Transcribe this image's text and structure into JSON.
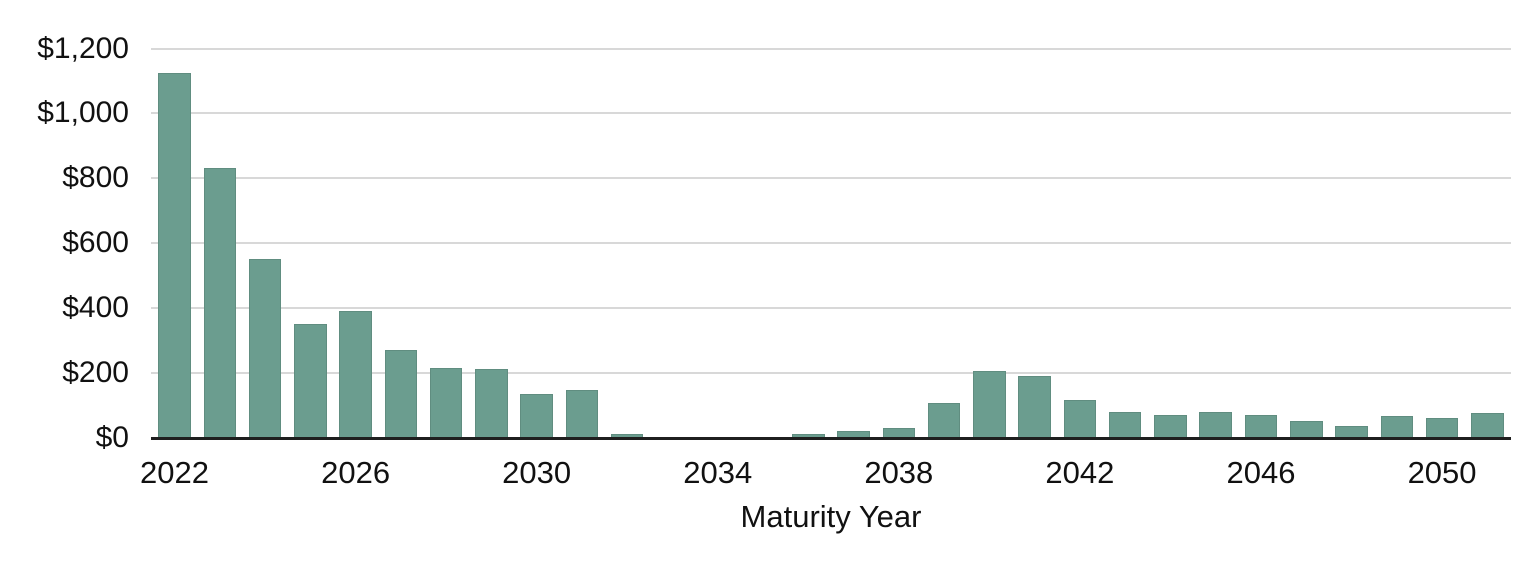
{
  "chart_data": {
    "type": "bar",
    "title": "",
    "xlabel": "Maturity Year",
    "ylabel": "",
    "categories": [
      "2022",
      "2023",
      "2024",
      "2025",
      "2026",
      "2027",
      "2028",
      "2029",
      "2030",
      "2031",
      "2032",
      "2033",
      "2034",
      "2035",
      "2036",
      "2037",
      "2038",
      "2039",
      "2040",
      "2041",
      "2042",
      "2043",
      "2044",
      "2045",
      "2046",
      "2047",
      "2048",
      "2049",
      "2050",
      "2051"
    ],
    "values": [
      1125,
      830,
      550,
      350,
      390,
      270,
      215,
      210,
      135,
      145,
      10,
      0,
      0,
      0,
      10,
      20,
      30,
      105,
      205,
      190,
      115,
      80,
      70,
      80,
      70,
      50,
      35,
      65,
      60,
      75
    ],
    "ylim": [
      0,
      1200
    ],
    "y_tick_step": 200,
    "y_ticks": [
      0,
      200,
      400,
      600,
      800,
      1000,
      1200
    ],
    "y_tick_labels": [
      "$0",
      "$200",
      "$400",
      "$600",
      "$800",
      "$1,000",
      "$1,200"
    ],
    "x_tick_years": [
      "2022",
      "2026",
      "2030",
      "2034",
      "2038",
      "2042",
      "2046",
      "2050"
    ],
    "grid": "horizontal",
    "legend": "none",
    "colors": {
      "bar": "#6B9D8F",
      "gridline": "#D8D8D8",
      "axis_line": "#1F1F1F",
      "text": "#111111"
    }
  }
}
